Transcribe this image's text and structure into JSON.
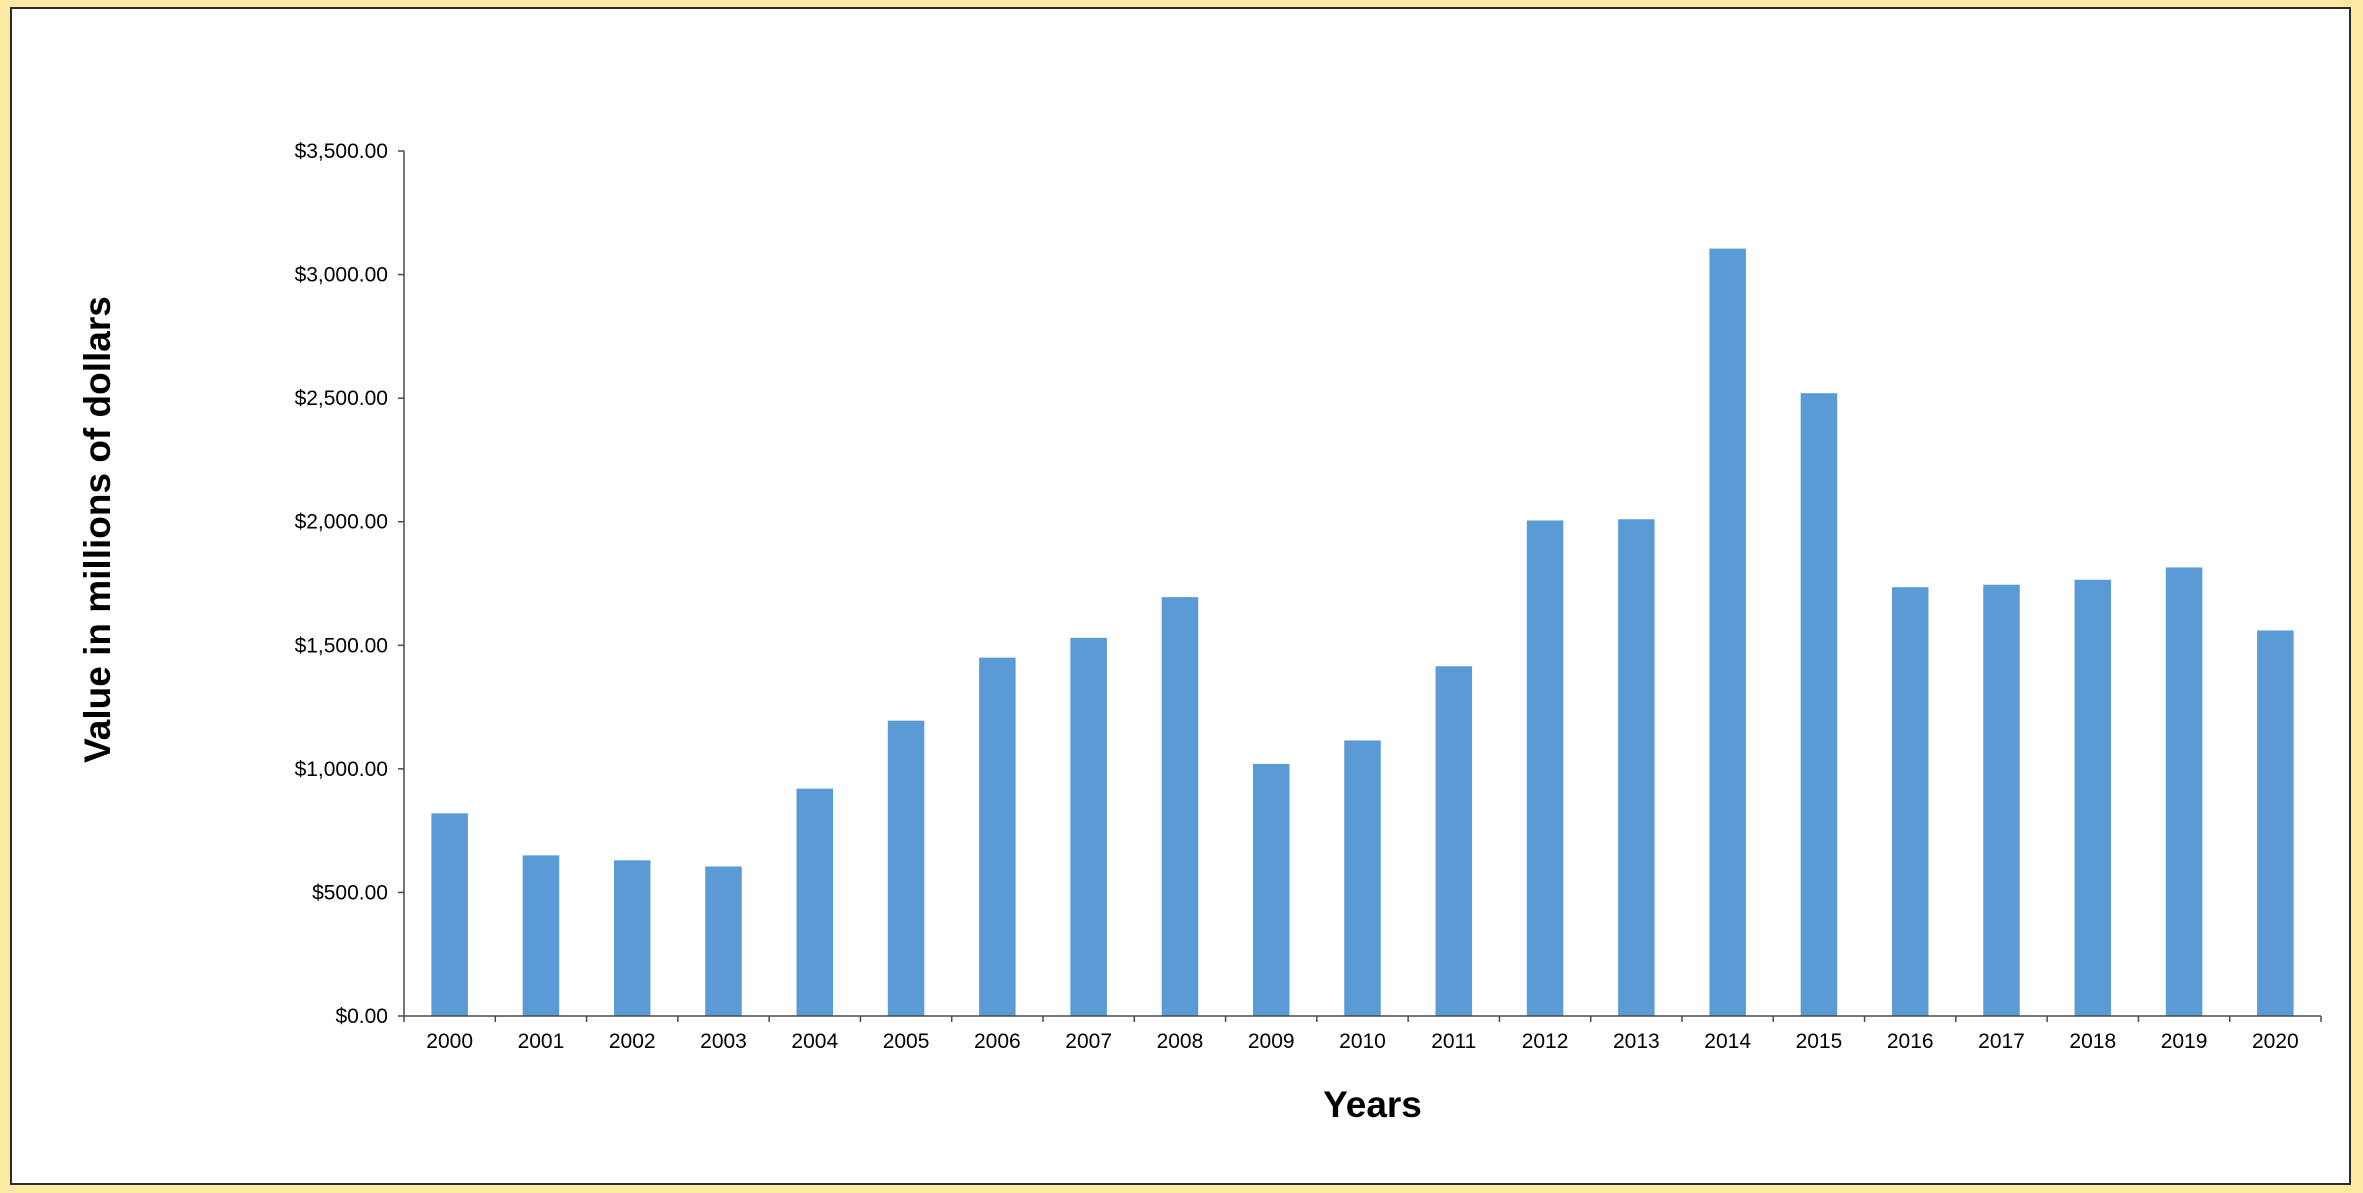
{
  "colors": {
    "background": "#fbe9a4",
    "panel": "#ffffff",
    "bar": "#5b9bd5",
    "axis": "#4a4a4a"
  },
  "chart_data": {
    "type": "bar",
    "title": "",
    "xlabel": "Years",
    "ylabel": "Value in millions of dollars",
    "categories": [
      "2000",
      "2001",
      "2002",
      "2003",
      "2004",
      "2005",
      "2006",
      "2007",
      "2008",
      "2009",
      "2010",
      "2011",
      "2012",
      "2013",
      "2014",
      "2015",
      "2016",
      "2017",
      "2018",
      "2019",
      "2020"
    ],
    "series": [
      {
        "values": [
          820,
          650,
          630,
          605,
          920,
          1195,
          1450,
          1530,
          1695,
          1020,
          1115,
          1415,
          2005,
          2010,
          3105,
          2520,
          1735,
          1745,
          1765,
          1815,
          1560
        ]
      }
    ],
    "yticks": [
      0,
      500,
      1000,
      1500,
      2000,
      2500,
      3000,
      3500
    ],
    "ytick_labels": [
      "$0.00",
      "$500.00",
      "$1,000.00",
      "$1,500.00",
      "$2,000.00",
      "$2,500.00",
      "$3,000.00",
      "$3,500.00"
    ],
    "ylim": [
      0,
      3500
    ],
    "grid": false,
    "legend": "none"
  }
}
